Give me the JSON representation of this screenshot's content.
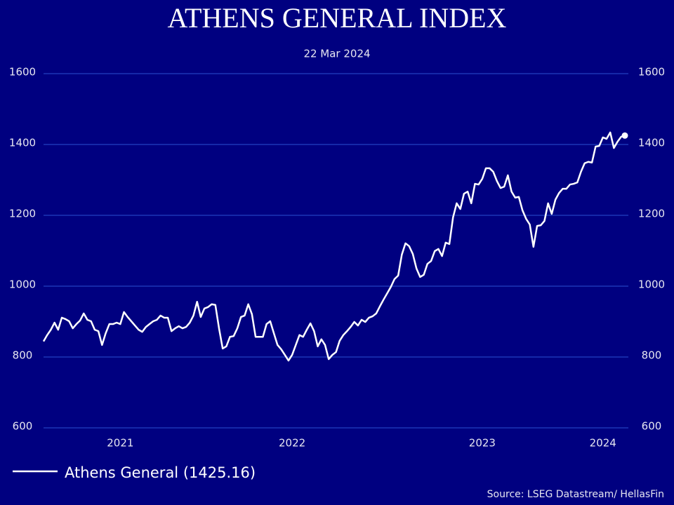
{
  "chart_data": {
    "type": "line",
    "title": "ATHENS GENERAL INDEX",
    "subtitle": "22 Mar 2024",
    "source": "Source: LSEG Datastream/ HellasFin",
    "categories": [
      null,
      null,
      null,
      null,
      null,
      null,
      null,
      null,
      null,
      null,
      null,
      null,
      null,
      null,
      null,
      null,
      null,
      null,
      null,
      null,
      null,
      "2021",
      null,
      null,
      null,
      null,
      null,
      null,
      null,
      null,
      null,
      null,
      null,
      null,
      null,
      null,
      null,
      null,
      null,
      null,
      null,
      null,
      null,
      null,
      null,
      null,
      null,
      null,
      null,
      null,
      null,
      null,
      null,
      null,
      null,
      null,
      null,
      null,
      null,
      null,
      null,
      null,
      null,
      null,
      null,
      null,
      null,
      null,
      "2022",
      null,
      null,
      null,
      null,
      null,
      null,
      null,
      null,
      null,
      null,
      null,
      null,
      null,
      null,
      null,
      null,
      null,
      null,
      null,
      null,
      null,
      null,
      null,
      null,
      null,
      null,
      null,
      null,
      null,
      null,
      null,
      null,
      null,
      null,
      null,
      null,
      null,
      null,
      null,
      null,
      null,
      null,
      null,
      null,
      null,
      null,
      null,
      null,
      null,
      null,
      null,
      "2023",
      null,
      null,
      null,
      null,
      null,
      null,
      null,
      null,
      null,
      null,
      null,
      null,
      null,
      null,
      null,
      null,
      null,
      null,
      null,
      null,
      null,
      null,
      null,
      null,
      null,
      null,
      null,
      null,
      null,
      null,
      null,
      null,
      "2024",
      null,
      null,
      null,
      null,
      null,
      null
    ],
    "series": [
      {
        "name": "Athens General (1425.16)",
        "color": "#ffffff",
        "values": [
          844,
          862,
          877,
          897,
          877,
          911,
          907,
          901,
          881,
          893,
          903,
          923,
          905,
          901,
          877,
          873,
          834,
          867,
          893,
          893,
          897,
          893,
          927,
          913,
          901,
          889,
          877,
          871,
          885,
          893,
          901,
          905,
          917,
          911,
          911,
          873,
          881,
          887,
          881,
          885,
          897,
          917,
          956,
          913,
          937,
          941,
          949,
          947,
          881,
          824,
          830,
          857,
          859,
          881,
          913,
          917,
          949,
          921,
          857,
          857,
          857,
          893,
          901,
          867,
          834,
          822,
          806,
          790,
          806,
          834,
          862,
          857,
          877,
          895,
          873,
          830,
          850,
          834,
          794,
          806,
          814,
          846,
          862,
          873,
          885,
          899,
          889,
          905,
          899,
          911,
          915,
          923,
          943,
          962,
          980,
          998,
          1020,
          1030,
          1089,
          1121,
          1113,
          1091,
          1050,
          1026,
          1032,
          1063,
          1071,
          1099,
          1105,
          1085,
          1123,
          1119,
          1194,
          1234,
          1218,
          1261,
          1267,
          1234,
          1289,
          1287,
          1303,
          1333,
          1333,
          1323,
          1297,
          1277,
          1281,
          1313,
          1267,
          1250,
          1252,
          1214,
          1190,
          1174,
          1111,
          1170,
          1172,
          1184,
          1234,
          1204,
          1244,
          1263,
          1275,
          1275,
          1287,
          1289,
          1293,
          1323,
          1347,
          1351,
          1349,
          1394,
          1396,
          1420,
          1416,
          1434,
          1390,
          1408,
          1422,
          1425.16
        ]
      }
    ],
    "ylim": [
      600,
      1600
    ],
    "yticks": [
      600,
      800,
      1000,
      1200,
      1400,
      1600
    ],
    "grid": true,
    "legend": "bottom-left"
  }
}
